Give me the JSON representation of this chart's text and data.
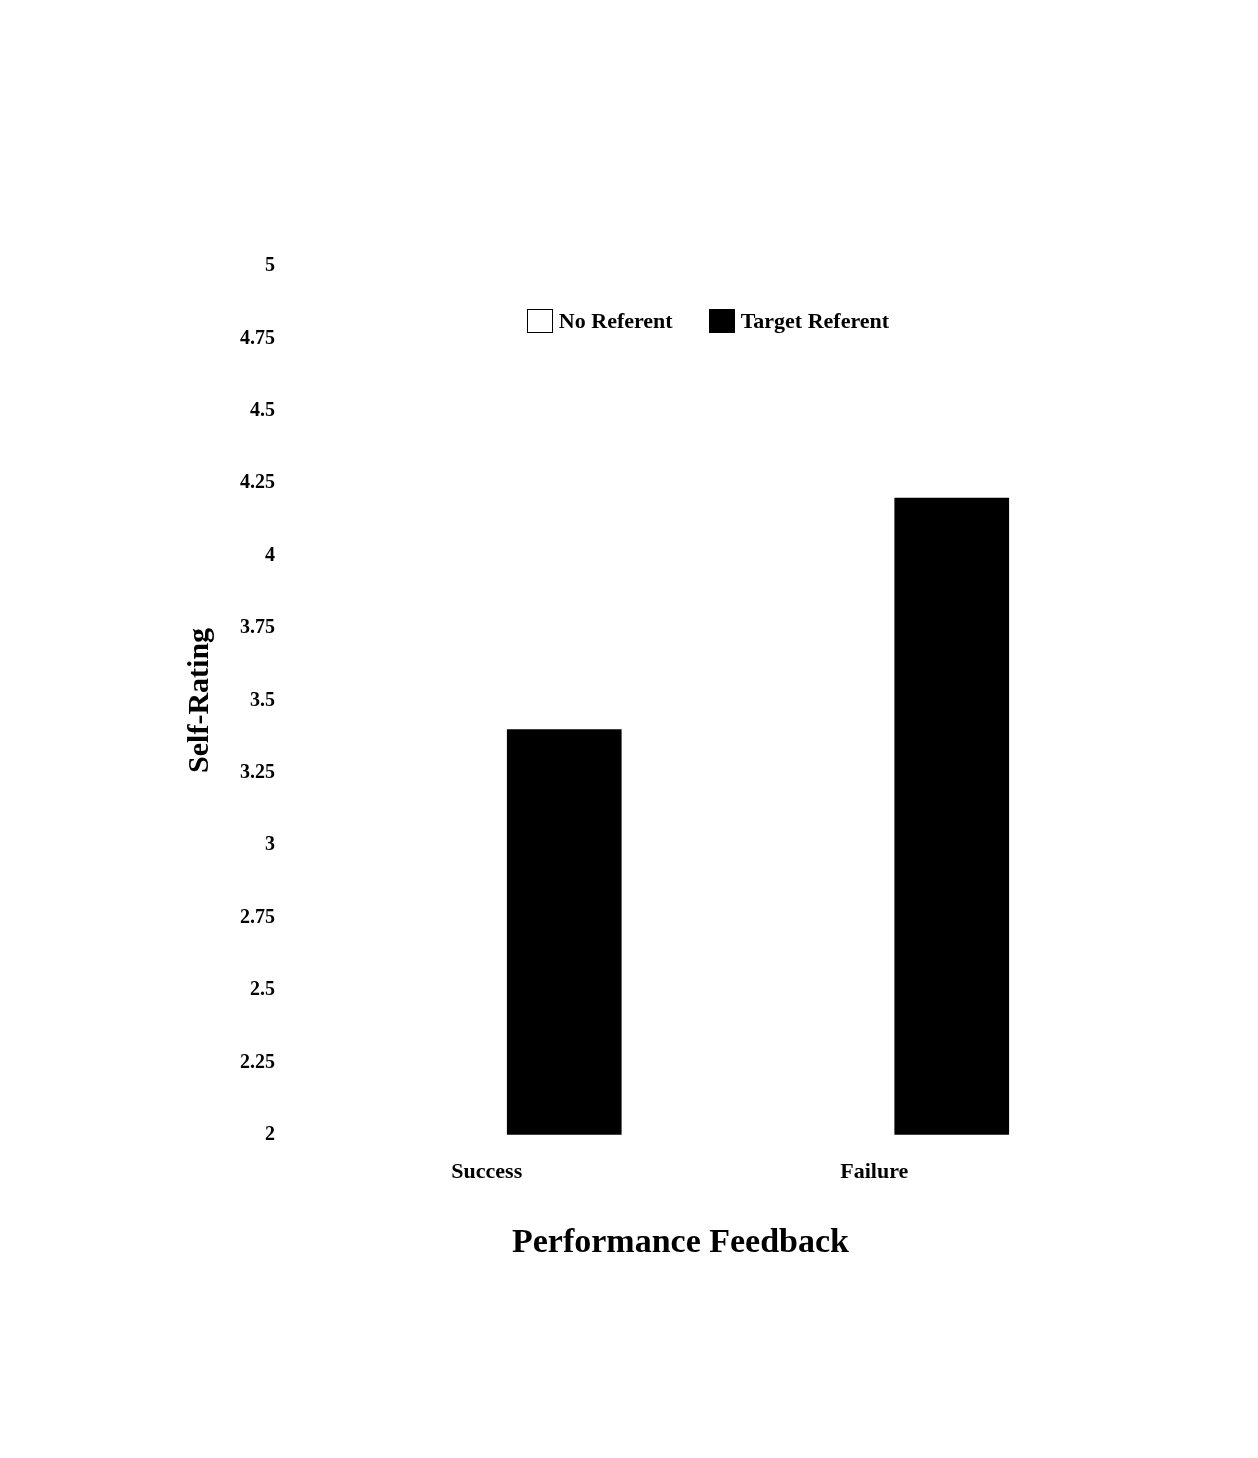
{
  "chart_data": {
    "type": "bar",
    "xlabel": "Performance Feedback",
    "ylabel": "Self-Rating",
    "categories": [
      "Success",
      "Failure"
    ],
    "series": [
      {
        "name": "No Referent",
        "color": "#ffffff",
        "values": [
          null,
          null
        ]
      },
      {
        "name": "Target Referent",
        "color": "#000000",
        "values": [
          3.4,
          4.2
        ]
      }
    ],
    "ylim": [
      2,
      5
    ],
    "yticks": [
      2,
      2.25,
      2.5,
      2.75,
      3,
      3.25,
      3.5,
      3.75,
      4,
      4.25,
      4.5,
      4.75,
      5
    ],
    "grid": false,
    "legend": "top"
  }
}
